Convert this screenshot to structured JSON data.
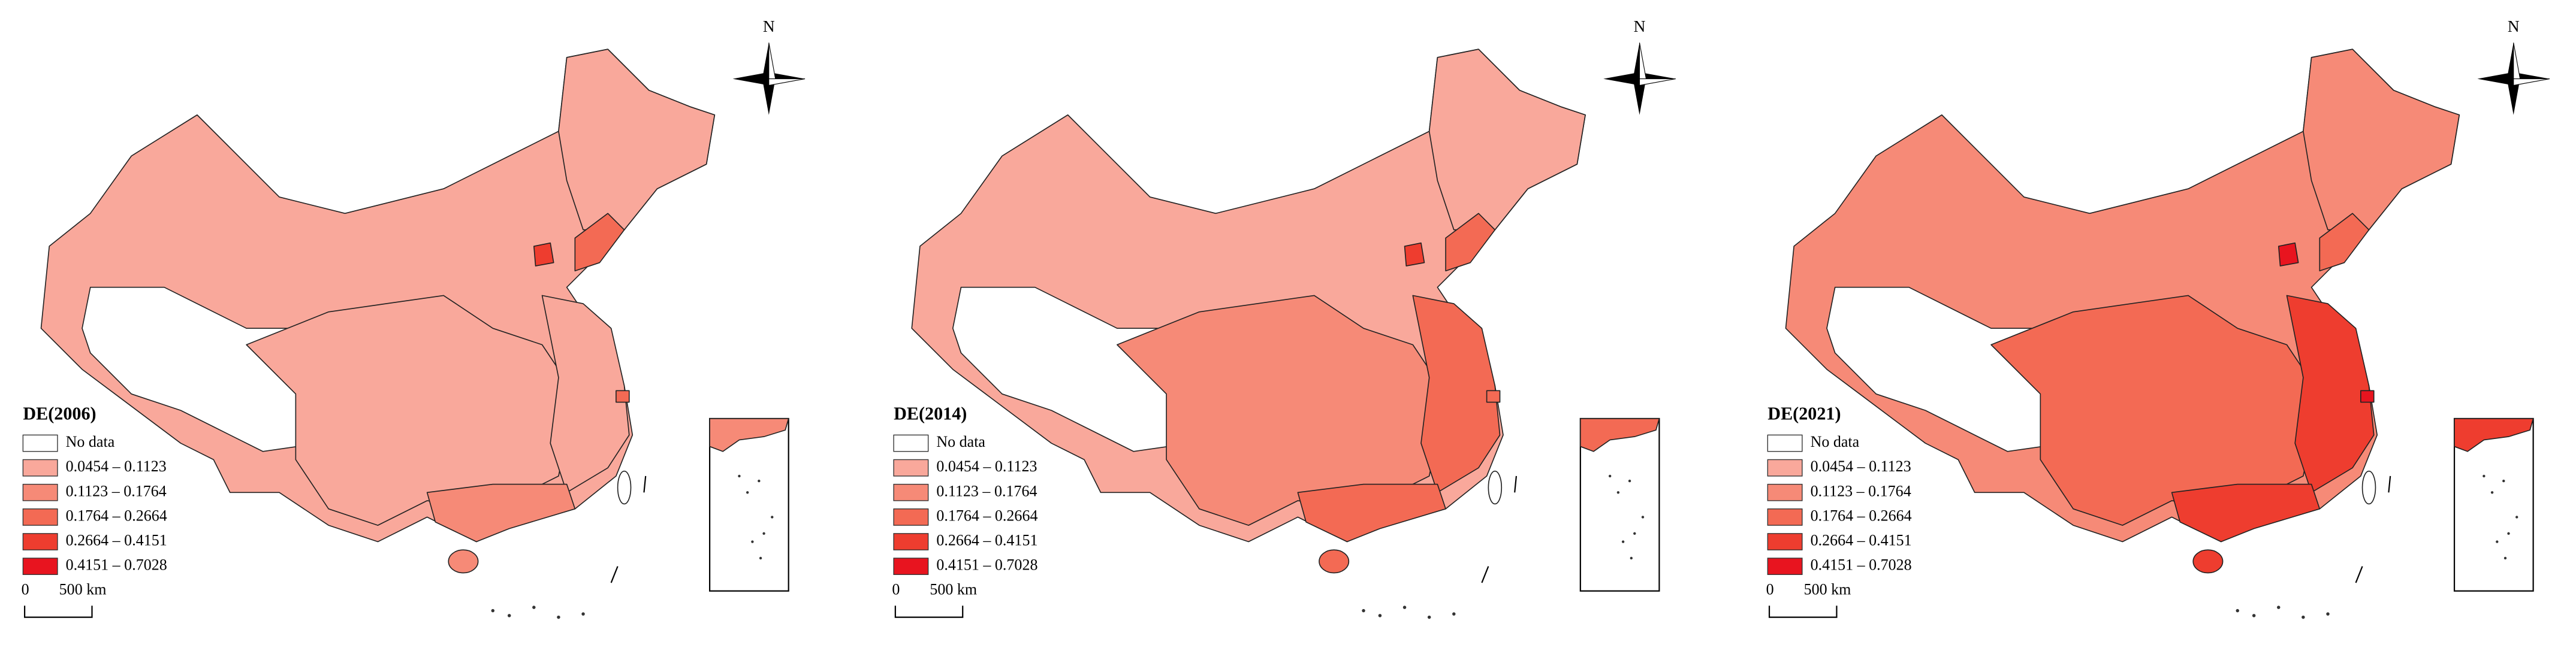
{
  "maps": [
    {
      "title": "DE(2006)",
      "north": "N",
      "scale": {
        "start": "0",
        "end": "500 km"
      },
      "legend": [
        {
          "label": "No data",
          "color": "#ffffff"
        },
        {
          "label": "0.0454 – 0.1123",
          "color": "#f9a89b"
        },
        {
          "label": "0.1123 – 0.1764",
          "color": "#f68a77"
        },
        {
          "label": "0.1764 – 0.2664",
          "color": "#f36a54"
        },
        {
          "label": "0.2664 – 0.4151",
          "color": "#ee3d2f"
        },
        {
          "label": "0.4151 – 0.7028",
          "color": "#e8141f"
        }
      ]
    },
    {
      "title": "DE(2014)",
      "north": "N",
      "scale": {
        "start": "0",
        "end": "500 km"
      },
      "legend": [
        {
          "label": "No data",
          "color": "#ffffff"
        },
        {
          "label": "0.0454 – 0.1123",
          "color": "#f9a89b"
        },
        {
          "label": "0.1123 – 0.1764",
          "color": "#f68a77"
        },
        {
          "label": "0.1764 – 0.2664",
          "color": "#f36a54"
        },
        {
          "label": "0.2664 – 0.4151",
          "color": "#ee3d2f"
        },
        {
          "label": "0.4151 – 0.7028",
          "color": "#e8141f"
        }
      ]
    },
    {
      "title": "DE(2021)",
      "north": "N",
      "scale": {
        "start": "0",
        "end": "500 km"
      },
      "legend": [
        {
          "label": "No data",
          "color": "#ffffff"
        },
        {
          "label": "0.0454 – 0.1123",
          "color": "#f9a89b"
        },
        {
          "label": "0.1123 – 0.1764",
          "color": "#f68a77"
        },
        {
          "label": "0.1764 – 0.2664",
          "color": "#f36a54"
        },
        {
          "label": "0.2664 – 0.4151",
          "color": "#ee3d2f"
        },
        {
          "label": "0.4151 – 0.7028",
          "color": "#e8141f"
        }
      ]
    }
  ]
}
